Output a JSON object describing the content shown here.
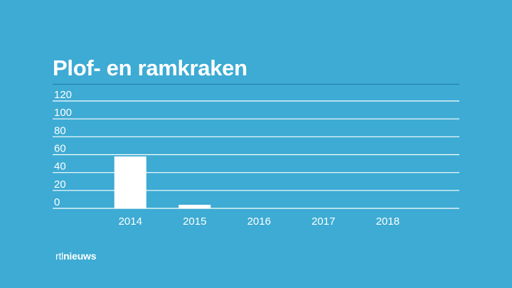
{
  "chart_data": {
    "type": "bar",
    "title": "Plof- en ramkraken",
    "categories": [
      "2014",
      "2015",
      "2016",
      "2017",
      "2018"
    ],
    "values": [
      58,
      4,
      0,
      0,
      0
    ],
    "yticks": [
      0,
      20,
      40,
      60,
      80,
      100,
      120
    ],
    "ylim": [
      0,
      120
    ],
    "xlabel": "",
    "ylabel": "",
    "grid": true,
    "legend": "none"
  },
  "brand": {
    "prefix": "rtl",
    "name": "nieuws"
  },
  "colors": {
    "background": "#3dabd3",
    "bar": "#ffffff",
    "gridline": "#ffffff",
    "title_rule": "#1e7aa3"
  }
}
